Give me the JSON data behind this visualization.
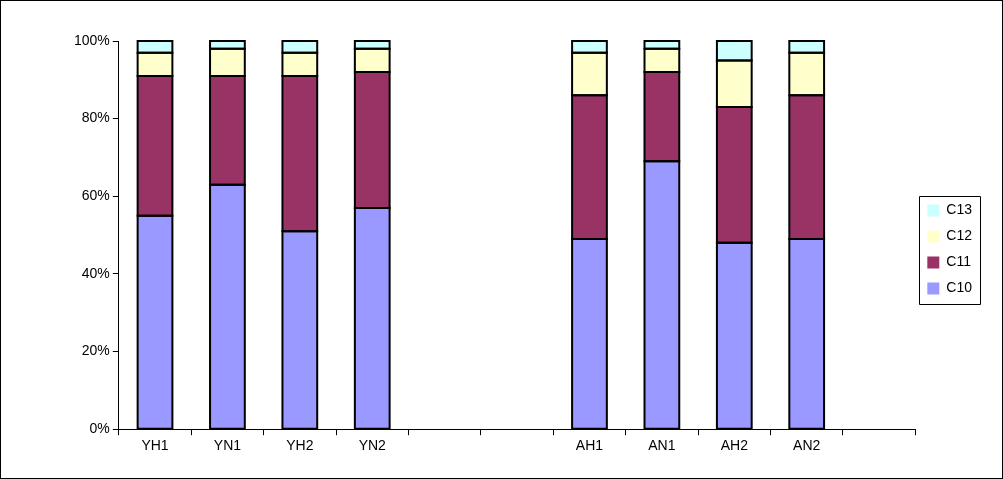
{
  "chart_data": {
    "type": "bar",
    "stacked": true,
    "categories": [
      "YH1",
      "YN1",
      "YH2",
      "YN2",
      null,
      null,
      "AH1",
      "AN1",
      "AH2",
      "AN2",
      null
    ],
    "series": [
      {
        "name": "C10",
        "color": "#9999ff",
        "values": [
          55,
          63,
          51,
          57,
          null,
          null,
          49,
          69,
          48,
          49,
          null
        ]
      },
      {
        "name": "C11",
        "color": "#993366",
        "values": [
          36,
          28,
          40,
          35,
          null,
          null,
          37,
          23,
          35,
          37,
          null
        ]
      },
      {
        "name": "C12",
        "color": "#ffffcc",
        "values": [
          6,
          7,
          6,
          6,
          null,
          null,
          11,
          6,
          12,
          11,
          null
        ]
      },
      {
        "name": "C13",
        "color": "#ccffff",
        "values": [
          3,
          2,
          3,
          2,
          null,
          null,
          3,
          2,
          5,
          3,
          null
        ]
      }
    ],
    "ylim": [
      0,
      100
    ],
    "yticks": [
      {
        "value": 0,
        "label": "0%"
      },
      {
        "value": 20,
        "label": "20%"
      },
      {
        "value": 40,
        "label": "40%"
      },
      {
        "value": 60,
        "label": "60%"
      },
      {
        "value": 80,
        "label": "80%"
      },
      {
        "value": 100,
        "label": "100%"
      }
    ],
    "grid": false,
    "legend": "right"
  }
}
